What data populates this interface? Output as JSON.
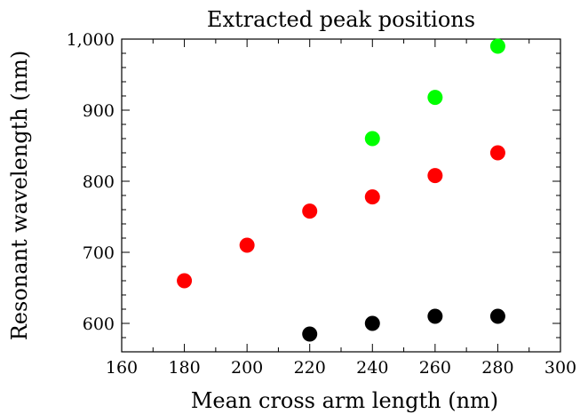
{
  "chart_data": {
    "type": "scatter",
    "title": "Extracted peak positions",
    "xlabel": "Mean cross arm length (nm)",
    "ylabel": "Resonant wavelength (nm)",
    "xlim": [
      160,
      300
    ],
    "ylim": [
      560,
      1000
    ],
    "x_ticks": [
      160,
      180,
      200,
      220,
      240,
      260,
      280,
      300
    ],
    "x_tick_labels": [
      "160",
      "180",
      "200",
      "220",
      "240",
      "260",
      "280",
      "300"
    ],
    "y_ticks": [
      600,
      700,
      800,
      900,
      1000
    ],
    "y_tick_labels": [
      "600",
      "700",
      "800",
      "900",
      "1,000"
    ],
    "grid": false,
    "series": [
      {
        "color": "#000000",
        "x": [
          220,
          240,
          260,
          280
        ],
        "y": [
          585,
          600,
          610,
          610
        ]
      },
      {
        "color": "#ff0000",
        "x": [
          180,
          200,
          220,
          240,
          260,
          280
        ],
        "y": [
          660,
          710,
          758,
          778,
          808,
          840
        ]
      },
      {
        "color": "#00ff00",
        "x": [
          240,
          260,
          280
        ],
        "y": [
          860,
          918,
          990
        ]
      }
    ]
  }
}
